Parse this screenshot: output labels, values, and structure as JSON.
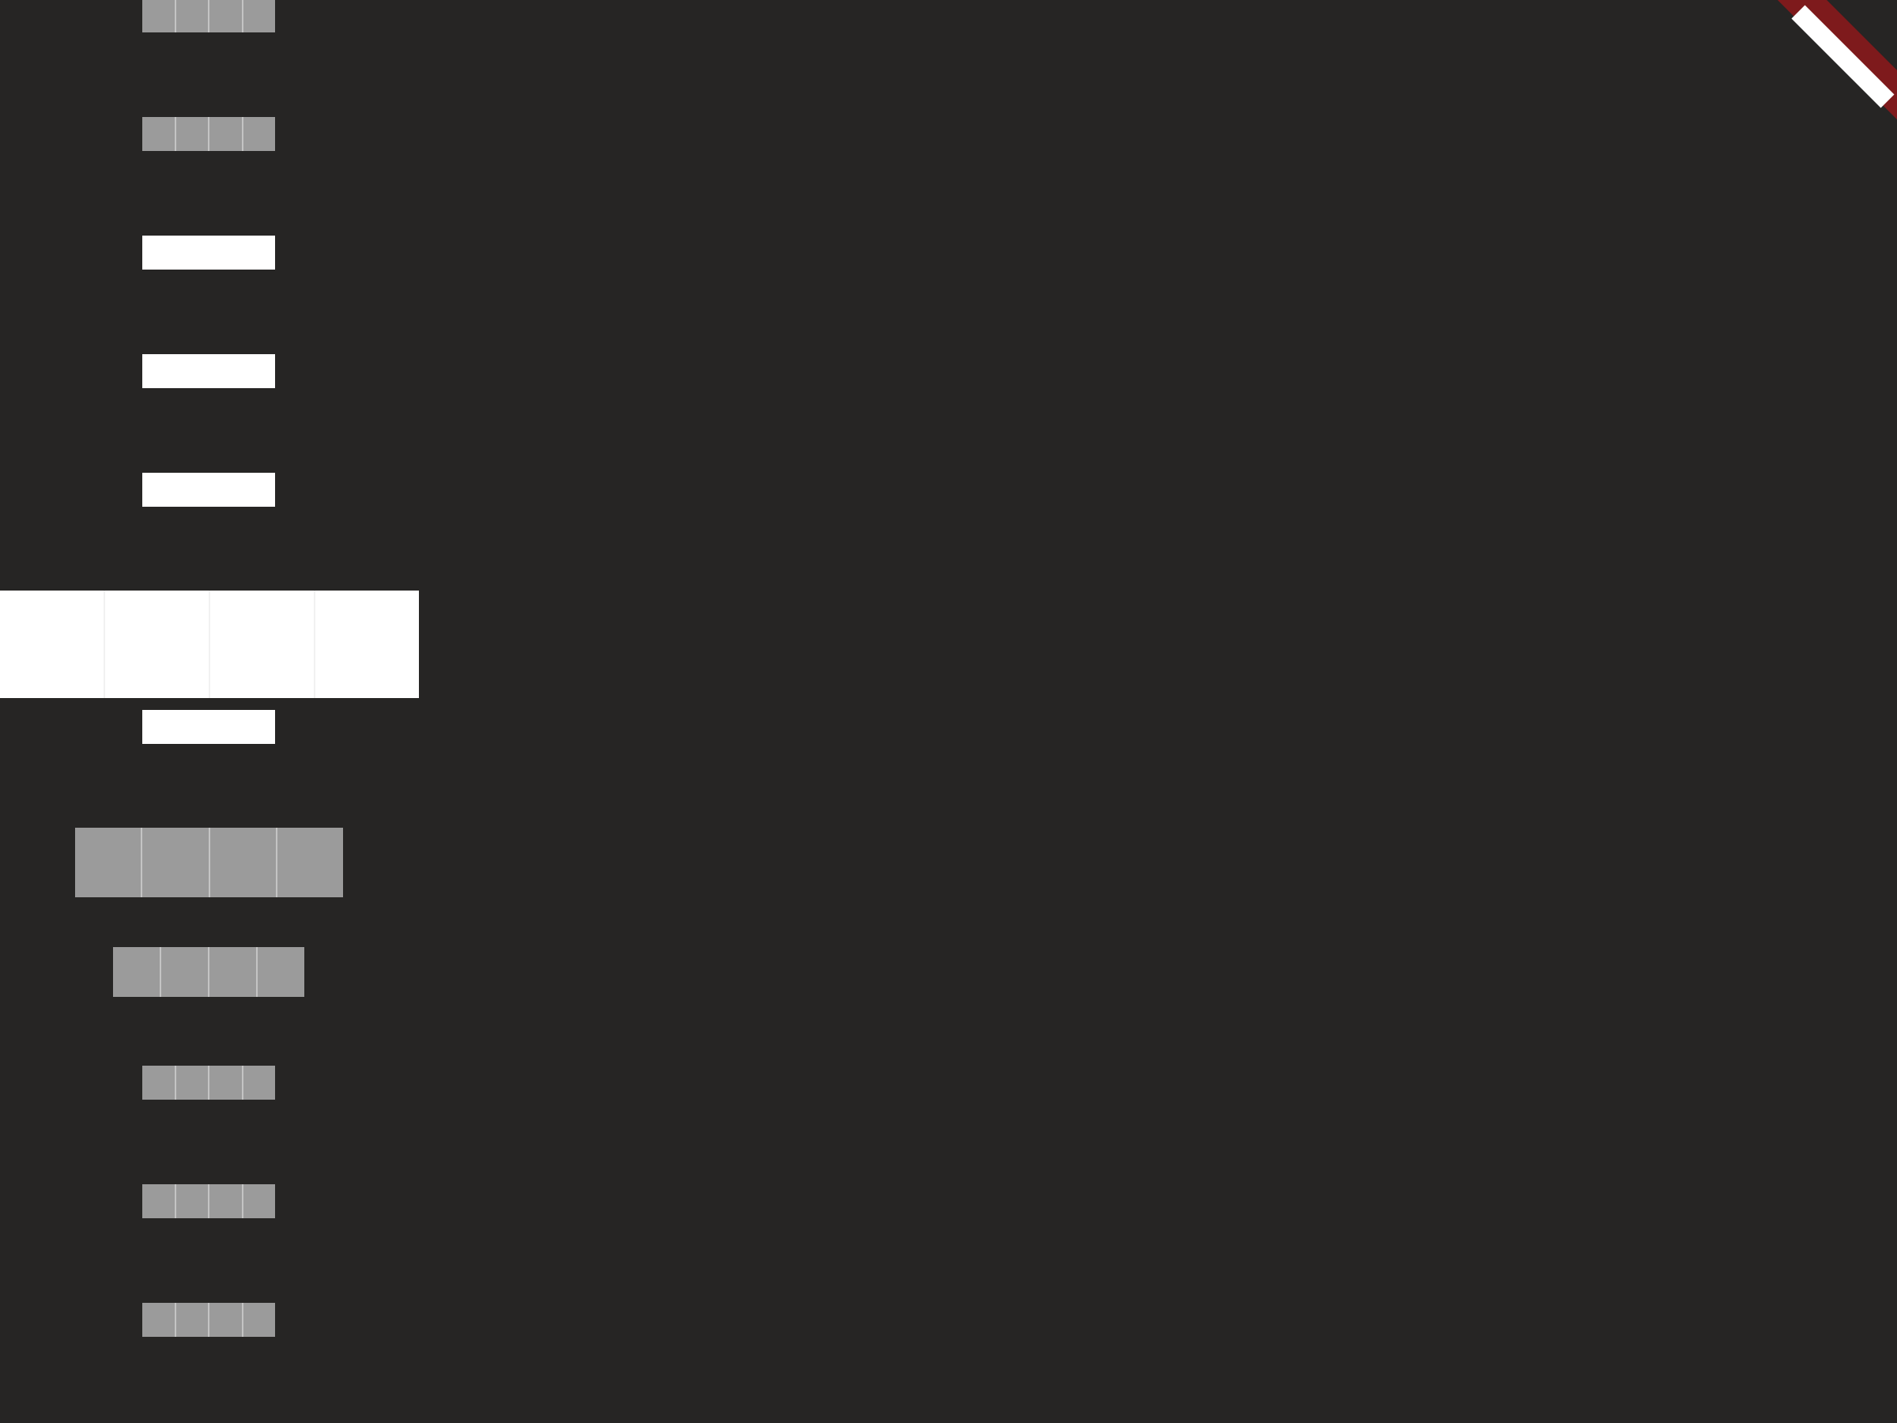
{
  "screen": {
    "background": "#262524"
  },
  "picker": {
    "items": [
      {
        "state": "dim",
        "segments": 4
      },
      {
        "state": "dim",
        "segments": 4
      },
      {
        "state": "lit",
        "segments": 4
      },
      {
        "state": "lit",
        "segments": 4
      },
      {
        "state": "lit",
        "segments": 4
      },
      {
        "state": "focus",
        "segments": 4
      },
      {
        "state": "lit",
        "segments": 4
      },
      {
        "state": "dim",
        "segments": 4
      },
      {
        "state": "dim",
        "segments": 4
      },
      {
        "state": "dim",
        "segments": 4
      },
      {
        "state": "dim",
        "segments": 4
      },
      {
        "state": "dim",
        "segments": 4
      }
    ]
  },
  "corner_badge": {
    "icon": "diagonal-stripe-icon",
    "stripe_color": "#7e1a1c",
    "core_color": "#ffffff"
  }
}
